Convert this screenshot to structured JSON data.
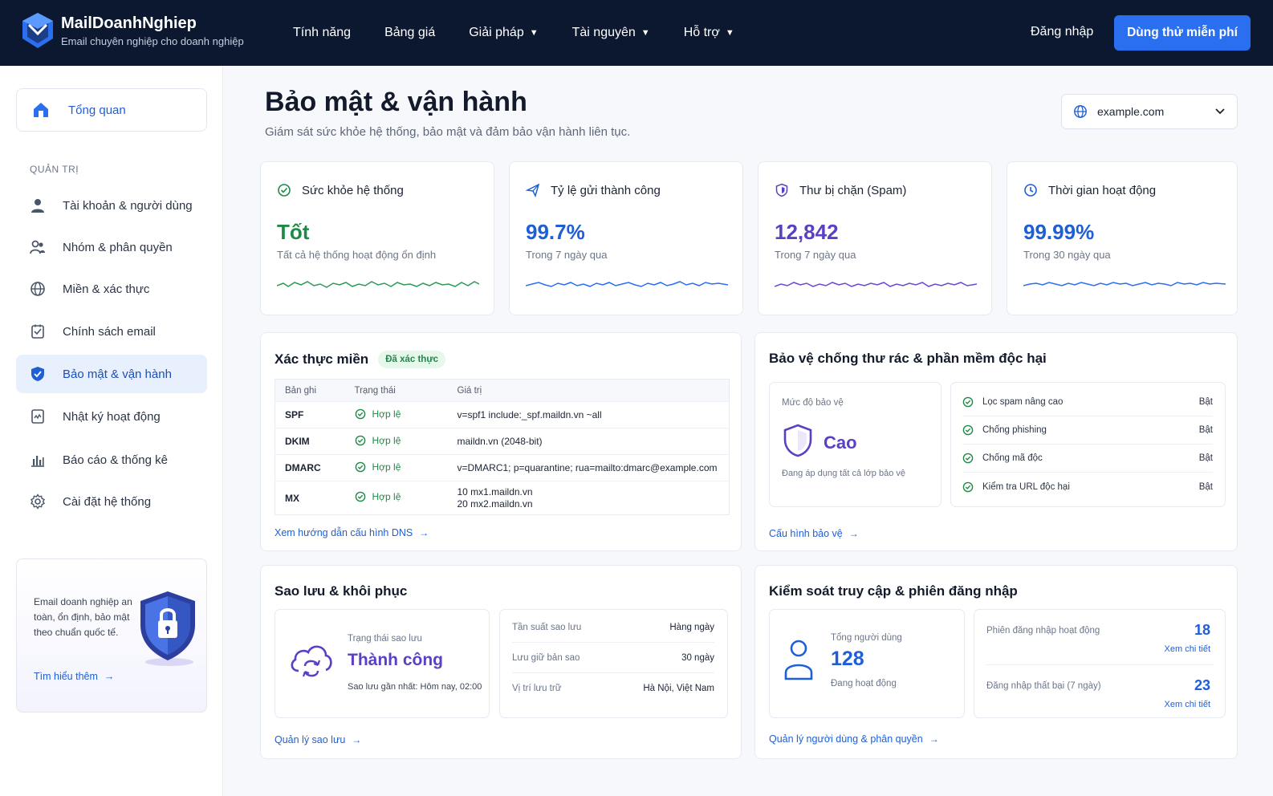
{
  "header": {
    "brand_name": "MailDoanhNghiep",
    "brand_tagline": "Email chuyên nghiệp cho doanh nghiệp",
    "nav": [
      "Tính năng",
      "Bảng giá",
      "Giải pháp",
      "Tài nguyên",
      "Hỗ trợ"
    ],
    "login": "Đăng nhập",
    "cta": "Dùng thử miễn phí"
  },
  "sidebar": {
    "home": "Tổng quan",
    "section": "QUẢN TRỊ",
    "items": [
      {
        "label": "Tài khoản & người dùng",
        "icon": "user-icon"
      },
      {
        "label": "Nhóm & phân quyền",
        "icon": "users-icon"
      },
      {
        "label": "Miền & xác thực",
        "icon": "globe-icon"
      },
      {
        "label": "Chính sách email",
        "icon": "policy-icon"
      },
      {
        "label": "Bảo mật & vận hành",
        "icon": "shield-icon",
        "active": true
      },
      {
        "label": "Nhật ký hoạt động",
        "icon": "log-icon"
      },
      {
        "label": "Báo cáo & thống kê",
        "icon": "chart-icon"
      },
      {
        "label": "Cài đặt hệ thống",
        "icon": "gear-icon"
      }
    ],
    "promo": {
      "text": "Email doanh nghiệp an toàn, ổn định, bảo mật theo chuẩn quốc tế.",
      "link": "Tìm hiểu thêm"
    }
  },
  "page": {
    "title": "Bảo mật & vận hành",
    "subtitle": "Giám sát sức khỏe hệ thống, bảo mật và đảm bảo vận hành liên tục.",
    "domain": "example.com"
  },
  "stats": [
    {
      "title": "Sức khỏe hệ thống",
      "value": "Tốt",
      "note": "Tất cả hệ thống hoạt động ổn định",
      "color": "#1f8a47"
    },
    {
      "title": "Tỷ lệ gửi thành công",
      "value": "99.7%",
      "note": "Trong 7 ngày qua",
      "color": "#1f5fd6"
    },
    {
      "title": "Thư bị chặn (Spam)",
      "value": "12,842",
      "note": "Trong 7 ngày qua",
      "color": "#5b3fc4"
    },
    {
      "title": "Thời gian hoạt động",
      "value": "99.99%",
      "note": "Trong 30 ngày qua",
      "color": "#1f5fd6"
    }
  ],
  "domain_auth": {
    "title": "Xác thực miền",
    "badge": "Đã xác thực",
    "headers": [
      "Bản ghi",
      "Trạng thái",
      "Giá trị"
    ],
    "rows": [
      {
        "record": "SPF",
        "status": "Hợp lệ",
        "value": "v=spf1 include:_spf.maildn.vn ~all"
      },
      {
        "record": "DKIM",
        "status": "Hợp lệ",
        "value": "maildn.vn (2048-bit)"
      },
      {
        "record": "DMARC",
        "status": "Hợp lệ",
        "value": "v=DMARC1; p=quarantine; rua=mailto:dmarc@example.com"
      },
      {
        "record": "MX",
        "status": "Hợp lệ",
        "value": "10 mx1.maildn.vn",
        "value2": "20 mx2.maildn.vn"
      }
    ],
    "link": "Xem hướng dẫn cấu hình DNS"
  },
  "protection": {
    "title": "Bảo vệ chống thư rác & phần mềm độc hại",
    "level_label": "Mức độ bảo vệ",
    "level": "Cao",
    "level_note": "Đang áp dụng tất cả lớp bảo vệ",
    "features": [
      {
        "name": "Lọc spam nâng cao",
        "status": "Bật"
      },
      {
        "name": "Chống phishing",
        "status": "Bật"
      },
      {
        "name": "Chống mã độc",
        "status": "Bật"
      },
      {
        "name": "Kiểm tra URL độc hại",
        "status": "Bật"
      }
    ],
    "link": "Cấu hình bảo vệ"
  },
  "backup": {
    "title": "Sao lưu & khôi phục",
    "status_label": "Trạng thái sao lưu",
    "status": "Thành công",
    "last": "Sao lưu gần nhất: Hôm nay, 02:00",
    "rows": [
      {
        "k": "Tần suất sao lưu",
        "v": "Hàng ngày"
      },
      {
        "k": "Lưu giữ bản sao",
        "v": "30 ngày"
      },
      {
        "k": "Vị trí lưu trữ",
        "v": "Hà Nội, Việt Nam"
      }
    ],
    "link": "Quản lý sao lưu"
  },
  "access": {
    "title": "Kiểm soát truy cập & phiên đăng nhập",
    "users_label": "Tổng người dùng",
    "users": "128",
    "users_note": "Đang hoạt động",
    "sessions_label": "Phiên đăng nhập hoạt động",
    "sessions": "18",
    "failed_label": "Đăng nhập thất bại (7 ngày)",
    "failed": "23",
    "detail": "Xem chi tiết",
    "link": "Quản lý người dùng & phân quyền"
  }
}
